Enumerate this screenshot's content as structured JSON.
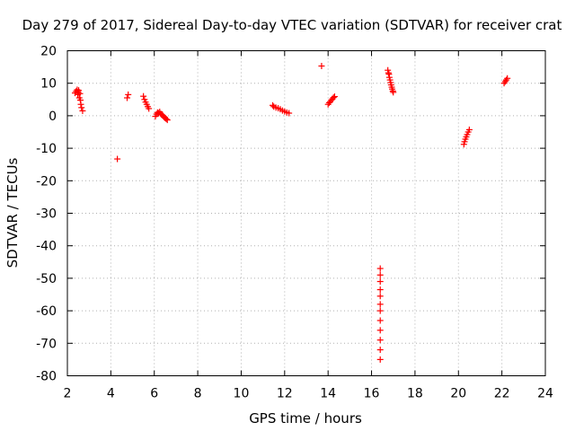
{
  "chart_data": {
    "type": "scatter",
    "title": "Day 279 of 2017, Sidereal Day-to-day VTEC variation (SDTVAR) for receiver crat",
    "xlabel": "GPS time / hours",
    "ylabel": "SDTVAR / TECUs",
    "xlim": [
      2,
      24
    ],
    "ylim": [
      -80,
      20
    ],
    "x_ticks": [
      2,
      4,
      6,
      8,
      10,
      12,
      14,
      16,
      18,
      20,
      22,
      24
    ],
    "y_ticks": [
      20,
      10,
      0,
      -10,
      -20,
      -30,
      -40,
      -50,
      -60,
      -70,
      -80
    ],
    "grid": true,
    "marker": "+",
    "color": "#ff0000",
    "series": [
      {
        "name": "SDTVAR",
        "points": [
          [
            2.35,
            7.0
          ],
          [
            2.4,
            7.5
          ],
          [
            2.45,
            8.0
          ],
          [
            2.48,
            6.5
          ],
          [
            2.52,
            7.8
          ],
          [
            2.55,
            5.5
          ],
          [
            2.58,
            6.8
          ],
          [
            2.6,
            4.8
          ],
          [
            2.62,
            3.5
          ],
          [
            2.65,
            2.5
          ],
          [
            2.7,
            1.5
          ],
          [
            2.5,
            7.2
          ],
          [
            4.3,
            -13.3
          ],
          [
            4.75,
            5.5
          ],
          [
            4.8,
            6.5
          ],
          [
            5.5,
            6.0
          ],
          [
            5.55,
            5.0
          ],
          [
            5.6,
            4.2
          ],
          [
            5.65,
            3.5
          ],
          [
            5.7,
            2.8
          ],
          [
            5.75,
            2.2
          ],
          [
            6.05,
            -0.2
          ],
          [
            6.1,
            0.5
          ],
          [
            6.15,
            1.0
          ],
          [
            6.2,
            0.8
          ],
          [
            6.25,
            1.2
          ],
          [
            6.3,
            0.6
          ],
          [
            6.35,
            0.3
          ],
          [
            6.4,
            0.0
          ],
          [
            6.45,
            -0.4
          ],
          [
            6.5,
            -0.7
          ],
          [
            6.55,
            -1.0
          ],
          [
            6.6,
            -1.3
          ],
          [
            11.45,
            3.2
          ],
          [
            11.5,
            2.8
          ],
          [
            11.6,
            2.5
          ],
          [
            11.7,
            2.3
          ],
          [
            11.8,
            2.0
          ],
          [
            11.9,
            1.6
          ],
          [
            12.0,
            1.3
          ],
          [
            12.1,
            1.0
          ],
          [
            12.2,
            0.8
          ],
          [
            13.7,
            15.3
          ],
          [
            14.0,
            3.5
          ],
          [
            14.05,
            4.0
          ],
          [
            14.1,
            4.3
          ],
          [
            14.15,
            4.8
          ],
          [
            14.2,
            5.2
          ],
          [
            14.25,
            5.6
          ],
          [
            14.3,
            5.9
          ],
          [
            16.4,
            -47.0
          ],
          [
            16.4,
            -49.0
          ],
          [
            16.4,
            -51.0
          ],
          [
            16.4,
            -53.5
          ],
          [
            16.4,
            -55.5
          ],
          [
            16.4,
            -58.0
          ],
          [
            16.4,
            -60.0
          ],
          [
            16.4,
            -63.0
          ],
          [
            16.4,
            -66.0
          ],
          [
            16.4,
            -69.0
          ],
          [
            16.4,
            -72.0
          ],
          [
            16.4,
            -75.0
          ],
          [
            16.75,
            14.0
          ],
          [
            16.8,
            12.8
          ],
          [
            16.82,
            11.8
          ],
          [
            16.85,
            11.0
          ],
          [
            16.88,
            10.2
          ],
          [
            16.9,
            9.5
          ],
          [
            16.93,
            8.8
          ],
          [
            16.95,
            8.2
          ],
          [
            16.98,
            7.6
          ],
          [
            17.0,
            7.2
          ],
          [
            16.78,
            13.2
          ],
          [
            20.25,
            -8.8
          ],
          [
            20.28,
            -8.0
          ],
          [
            20.32,
            -7.2
          ],
          [
            20.36,
            -6.5
          ],
          [
            20.4,
            -5.8
          ],
          [
            20.45,
            -5.0
          ],
          [
            20.5,
            -4.3
          ],
          [
            22.1,
            10.0
          ],
          [
            22.15,
            10.5
          ],
          [
            22.2,
            11.0
          ],
          [
            22.25,
            11.5
          ]
        ]
      }
    ]
  }
}
